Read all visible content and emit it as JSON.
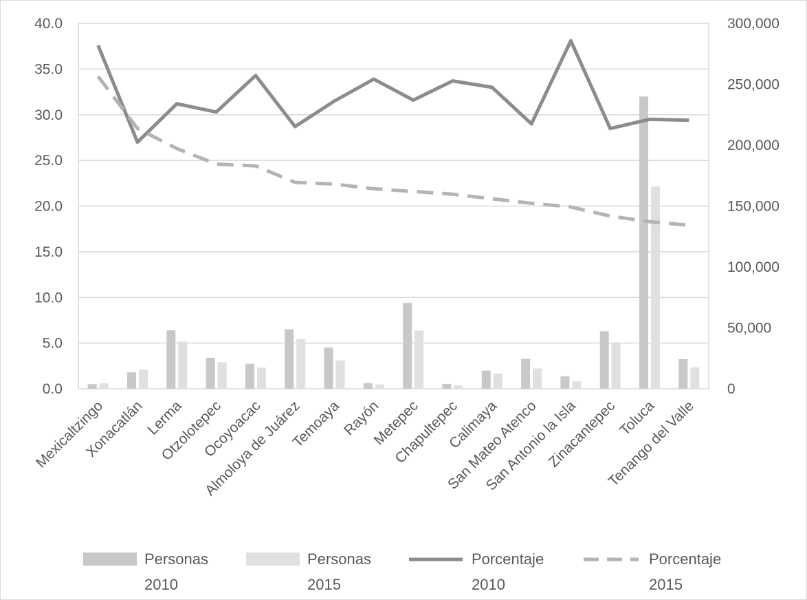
{
  "chart_data": {
    "type": "bar",
    "categories": [
      "Mexicaltzingo",
      "Xonacatlán",
      "Lerma",
      "Otzolotepec",
      "Ocoyoacac",
      "Almoloya de Juárez",
      "Temoaya",
      "Rayón",
      "Metepec",
      "Chapultepec",
      "Calimaya",
      "San Mateo Atenco",
      "San Antonio la Isla",
      "Zinacantepec",
      "Toluca",
      "Tenango del Valle"
    ],
    "left_axis": {
      "ylim": [
        0,
        40
      ],
      "ticks": [
        "0.0",
        "5.0",
        "10.0",
        "15.0",
        "20.0",
        "25.0",
        "30.0",
        "35.0",
        "40.0"
      ]
    },
    "right_axis": {
      "ylim": [
        0,
        300000
      ],
      "ticks": [
        "0",
        "50,000",
        "100,000",
        "150,000",
        "200,000",
        "250,000",
        "300,000"
      ]
    },
    "series": [
      {
        "name": "Personas 2010",
        "kind": "bar",
        "axis": "right",
        "color": "#c8c8c8",
        "values": [
          3800,
          13500,
          48000,
          25500,
          20500,
          48800,
          33800,
          4600,
          70500,
          4000,
          14900,
          24600,
          10200,
          47300,
          240000,
          24300
        ]
      },
      {
        "name": "Personas 2015",
        "kind": "bar",
        "axis": "right",
        "color": "#e0e0e0",
        "values": [
          4500,
          15800,
          38800,
          21800,
          17400,
          40800,
          23300,
          3500,
          47800,
          3000,
          12500,
          16700,
          6100,
          38100,
          166000,
          17600
        ]
      },
      {
        "name": "Porcentaje 2010",
        "kind": "line",
        "axis": "left",
        "color": "#8c8c8c",
        "dash": "solid",
        "values": [
          37.6,
          27.0,
          31.2,
          30.3,
          34.3,
          28.7,
          31.5,
          33.9,
          31.6,
          33.7,
          33.0,
          29.0,
          38.1,
          28.5,
          29.5,
          29.4
        ]
      },
      {
        "name": "Porcentaje 2015",
        "kind": "line",
        "axis": "left",
        "color": "#b4b4b4",
        "dash": "dashed",
        "values": [
          34.2,
          28.5,
          26.3,
          24.6,
          24.4,
          22.6,
          22.4,
          21.9,
          21.6,
          21.3,
          20.8,
          20.3,
          19.9,
          18.9,
          18.3,
          17.9
        ]
      }
    ],
    "legend": {
      "placement": "bottom",
      "items": [
        {
          "line1": "Personas",
          "line2": "2010"
        },
        {
          "line1": "Personas",
          "line2": "2015"
        },
        {
          "line1": "Porcentaje",
          "line2": "2010"
        },
        {
          "line1": "Porcentaje",
          "line2": "2015"
        }
      ]
    },
    "grid": true
  }
}
